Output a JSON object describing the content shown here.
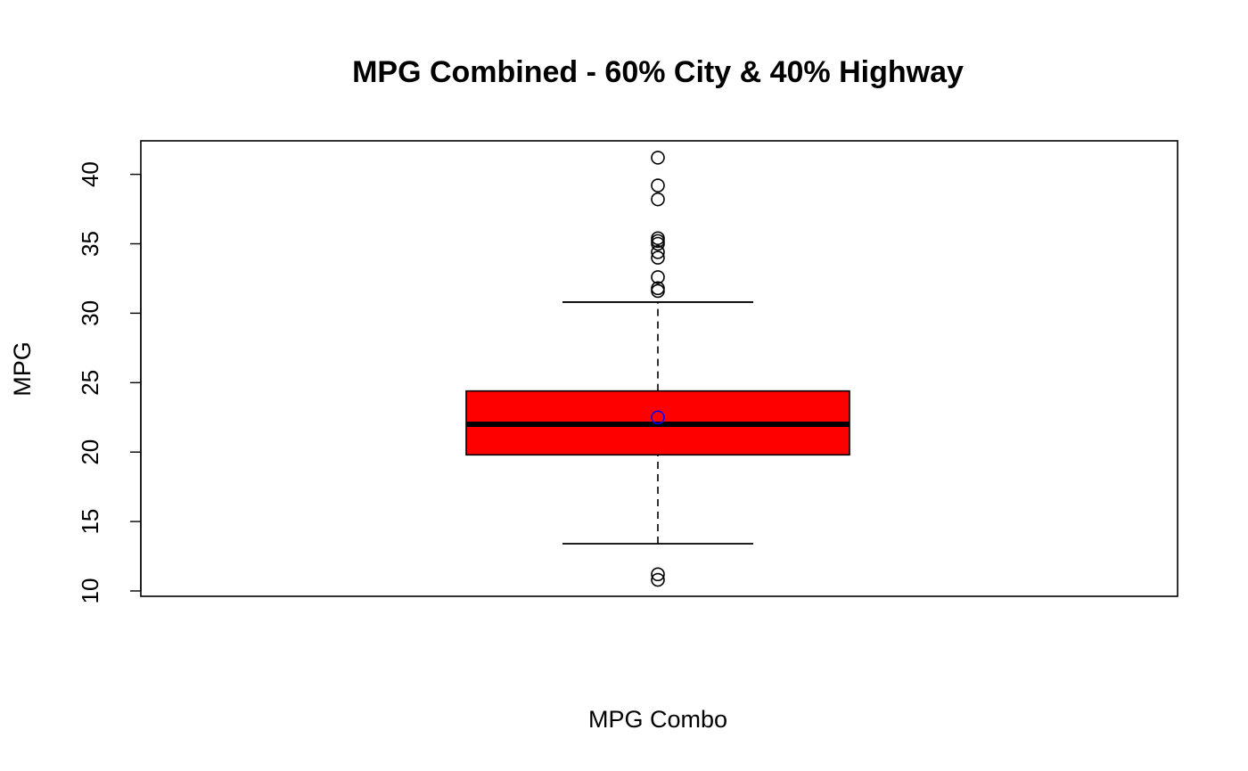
{
  "chart_data": {
    "type": "box",
    "title": "MPG Combined - 60% City & 40% Highway",
    "xlabel": "MPG Combo",
    "ylabel": "MPG",
    "ylim": [
      10,
      42.5
    ],
    "yticks": [
      10,
      15,
      20,
      25,
      30,
      35,
      40
    ],
    "grid": false,
    "legend": "none",
    "box": {
      "whisker_low": 13.4,
      "q1": 19.8,
      "median": 22.0,
      "q3": 24.4,
      "whisker_high": 30.8,
      "mean": 22.5,
      "outliers": [
        10.8,
        11.2,
        31.6,
        31.8,
        32.6,
        34.0,
        34.4,
        35.0,
        35.2,
        35.4,
        38.2,
        39.2,
        41.2
      ]
    },
    "colors": {
      "box_fill": "#ff0000",
      "mean_marker": "#0000ff",
      "outline": "#000000"
    }
  }
}
